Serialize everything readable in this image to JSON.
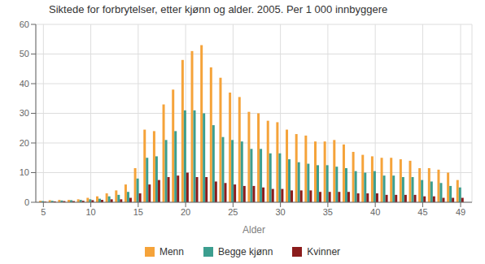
{
  "chart_data": {
    "type": "bar",
    "title": "Siktede for forbrytelser, etter kjønn og alder. 2005. Per 1 000 innbyggere",
    "xlabel": "Alder",
    "x": [
      5,
      6,
      7,
      8,
      9,
      10,
      11,
      12,
      13,
      14,
      15,
      16,
      17,
      18,
      19,
      20,
      21,
      22,
      23,
      24,
      25,
      26,
      27,
      28,
      29,
      30,
      31,
      32,
      33,
      34,
      35,
      36,
      37,
      38,
      39,
      40,
      41,
      42,
      43,
      44,
      45,
      46,
      47,
      48,
      49
    ],
    "series": [
      {
        "name": "Menn",
        "color": "#f5a33a",
        "values": [
          0.5,
          0.7,
          0.8,
          0.8,
          1.0,
          1.5,
          2.0,
          3.0,
          4.0,
          6.0,
          11.5,
          24.5,
          24.0,
          33.0,
          38.0,
          48.0,
          51.0,
          53.0,
          45.5,
          42.0,
          37.0,
          35.5,
          30.5,
          30.0,
          27.5,
          27.0,
          24.5,
          23.0,
          22.5,
          20.5,
          20.5,
          21.0,
          19.5,
          17.0,
          16.0,
          15.5,
          15.0,
          15.0,
          14.5,
          14.0,
          11.5,
          11.5,
          11.0,
          10.0,
          7.5
        ]
      },
      {
        "name": "Begge kjønn",
        "color": "#3c9e8f",
        "values": [
          0.4,
          0.5,
          0.6,
          0.7,
          0.8,
          1.0,
          1.2,
          2.0,
          2.5,
          3.5,
          8.0,
          15.0,
          15.5,
          21.0,
          24.0,
          31.0,
          31.0,
          30.0,
          26.0,
          22.0,
          21.0,
          20.5,
          18.0,
          18.0,
          16.5,
          16.5,
          14.5,
          13.5,
          13.0,
          12.5,
          12.5,
          12.0,
          11.5,
          10.5,
          10.0,
          10.5,
          9.0,
          9.0,
          8.5,
          8.5,
          7.5,
          7.0,
          6.5,
          5.5,
          5.0
        ]
      },
      {
        "name": "Kvinner",
        "color": "#8b1c1c",
        "values": [
          0.2,
          0.3,
          0.4,
          0.4,
          0.5,
          0.7,
          0.8,
          1.0,
          1.0,
          1.5,
          3.0,
          6.0,
          7.5,
          8.5,
          9.0,
          10.0,
          8.5,
          8.5,
          7.0,
          6.5,
          6.0,
          5.5,
          5.5,
          5.0,
          4.5,
          4.5,
          4.0,
          4.0,
          4.0,
          3.5,
          3.5,
          3.5,
          3.5,
          3.0,
          3.0,
          3.0,
          2.5,
          2.5,
          2.5,
          2.5,
          2.0,
          2.0,
          1.5,
          1.5,
          1.5
        ]
      }
    ],
    "xlim": [
      4.2,
      50.2
    ],
    "xticks": [
      5,
      10,
      15,
      20,
      25,
      30,
      35,
      40,
      45,
      49
    ],
    "ylim": [
      0,
      60
    ],
    "yticks": [
      0,
      10,
      20,
      30,
      40,
      50,
      60
    ],
    "grid": true
  }
}
